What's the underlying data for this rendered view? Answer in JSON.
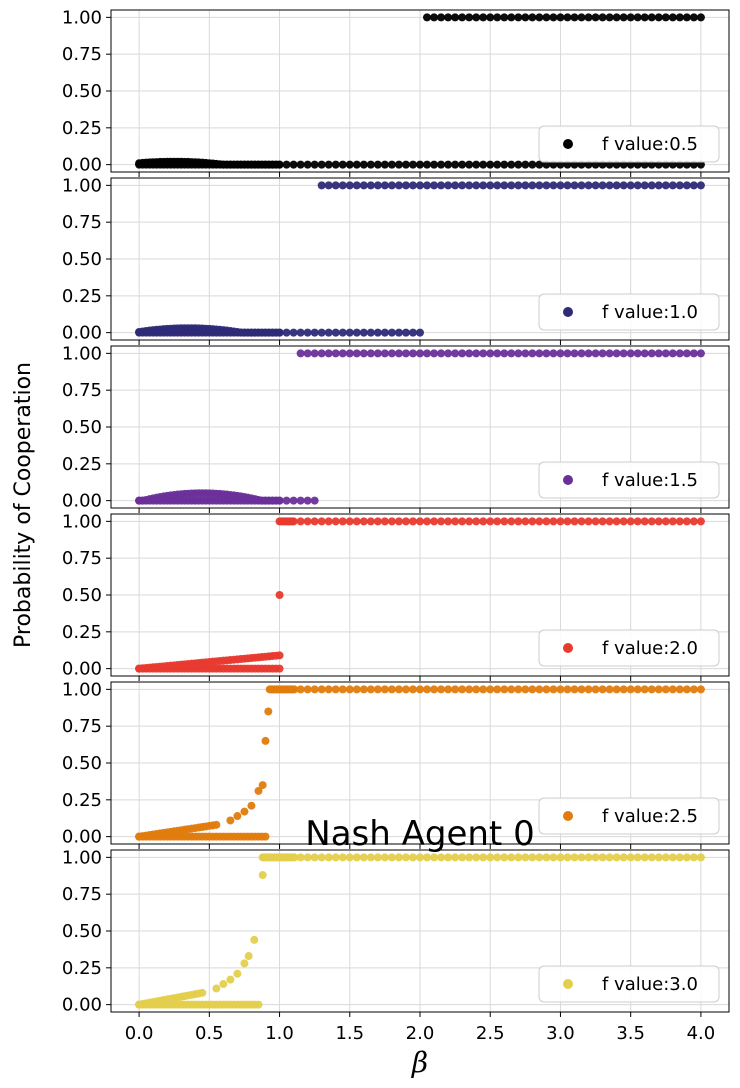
{
  "figure": {
    "title": "Nash Agent 0",
    "ylabel": "Probability of Cooperation",
    "xlabel": "β",
    "x_ticks": [
      "0.0",
      "0.5",
      "1.0",
      "1.5",
      "2.0",
      "2.5",
      "3.0",
      "3.5",
      "4.0"
    ],
    "y_ticks": [
      "0.00",
      "0.25",
      "0.50",
      "0.75",
      "1.00"
    ],
    "grid": true,
    "legend_position": "lower-right"
  },
  "chart_data": [
    {
      "type": "scatter",
      "name": "f value:0.5",
      "color": "#000000",
      "xlim": [
        -0.2,
        4.2
      ],
      "ylim": [
        -0.05,
        1.05
      ],
      "groups": [
        {
          "kind": "range",
          "x0": 0.0,
          "x1": 1.0,
          "step": 0.025,
          "y": 0.0
        },
        {
          "kind": "hump",
          "x0": 0.0,
          "x1": 1.0,
          "step": 0.025,
          "peak": 0.02,
          "center": 0.25,
          "width": 0.35
        },
        {
          "kind": "range",
          "x0": 1.05,
          "x1": 2.0,
          "step": 0.05,
          "y": 0.0
        },
        {
          "kind": "range",
          "x0": 2.05,
          "x1": 4.0,
          "step": 0.05,
          "y": 1.0
        },
        {
          "kind": "range",
          "x0": 2.05,
          "x1": 4.0,
          "step": 0.05,
          "y": 0.0
        }
      ]
    },
    {
      "type": "scatter",
      "name": "f value:1.0",
      "color": "#2e2a78",
      "xlim": [
        -0.2,
        4.2
      ],
      "ylim": [
        -0.05,
        1.05
      ],
      "groups": [
        {
          "kind": "range",
          "x0": 0.0,
          "x1": 1.0,
          "step": 0.025,
          "y": 0.0
        },
        {
          "kind": "hump",
          "x0": 0.0,
          "x1": 1.0,
          "step": 0.025,
          "peak": 0.03,
          "center": 0.35,
          "width": 0.38
        },
        {
          "kind": "range",
          "x0": 1.05,
          "x1": 2.0,
          "step": 0.05,
          "y": 0.0
        },
        {
          "kind": "range",
          "x0": 1.3,
          "x1": 4.0,
          "step": 0.05,
          "y": 1.0
        }
      ]
    },
    {
      "type": "scatter",
      "name": "f value:1.5",
      "color": "#6b2f9a",
      "xlim": [
        -0.2,
        4.2
      ],
      "ylim": [
        -0.05,
        1.05
      ],
      "groups": [
        {
          "kind": "range",
          "x0": 0.0,
          "x1": 1.0,
          "step": 0.025,
          "y": 0.0
        },
        {
          "kind": "hump",
          "x0": 0.0,
          "x1": 1.0,
          "step": 0.025,
          "peak": 0.05,
          "center": 0.45,
          "width": 0.42
        },
        {
          "kind": "range",
          "x0": 1.05,
          "x1": 1.25,
          "step": 0.05,
          "y": 0.0
        },
        {
          "kind": "range",
          "x0": 1.15,
          "x1": 4.0,
          "step": 0.05,
          "y": 1.0
        }
      ]
    },
    {
      "type": "scatter",
      "name": "f value:2.0",
      "color": "#e83a2f",
      "xlim": [
        -0.2,
        4.2
      ],
      "ylim": [
        -0.05,
        1.05
      ],
      "groups": [
        {
          "kind": "range",
          "x0": 0.0,
          "x1": 1.0,
          "step": 0.025,
          "y": 0.0
        },
        {
          "kind": "linear",
          "x0": 0.0,
          "x1": 1.0,
          "step": 0.025,
          "y0": 0.0,
          "y1": 0.09
        },
        {
          "kind": "points",
          "x": [
            1.0
          ],
          "y": [
            0.5
          ]
        },
        {
          "kind": "range",
          "x0": 1.0,
          "x1": 1.1,
          "step": 0.0125,
          "y": 1.0
        },
        {
          "kind": "range",
          "x0": 1.15,
          "x1": 4.0,
          "step": 0.05,
          "y": 1.0
        }
      ]
    },
    {
      "type": "scatter",
      "name": "f value:2.5",
      "color": "#e07c0e",
      "xlim": [
        -0.2,
        4.2
      ],
      "ylim": [
        -0.05,
        1.05
      ],
      "groups": [
        {
          "kind": "range",
          "x0": 0.0,
          "x1": 0.9,
          "step": 0.025,
          "y": 0.0
        },
        {
          "kind": "linear",
          "x0": 0.0,
          "x1": 0.55,
          "step": 0.025,
          "y0": 0.0,
          "y1": 0.08
        },
        {
          "kind": "points",
          "x": [
            0.65,
            0.7,
            0.75,
            0.8,
            0.85,
            0.88,
            0.9,
            0.92
          ],
          "y": [
            0.11,
            0.14,
            0.17,
            0.21,
            0.31,
            0.35,
            0.65,
            0.85
          ]
        },
        {
          "kind": "range",
          "x0": 0.93,
          "x1": 1.1,
          "step": 0.0125,
          "y": 1.0
        },
        {
          "kind": "range",
          "x0": 1.15,
          "x1": 4.0,
          "step": 0.05,
          "y": 1.0
        }
      ]
    },
    {
      "type": "scatter",
      "name": "f value:3.0",
      "color": "#e3cf4c",
      "xlim": [
        -0.2,
        4.2
      ],
      "ylim": [
        -0.05,
        1.05
      ],
      "groups": [
        {
          "kind": "range",
          "x0": 0.0,
          "x1": 0.85,
          "step": 0.025,
          "y": 0.0
        },
        {
          "kind": "linear",
          "x0": 0.0,
          "x1": 0.45,
          "step": 0.025,
          "y0": 0.0,
          "y1": 0.08
        },
        {
          "kind": "points",
          "x": [
            0.55,
            0.6,
            0.65,
            0.7,
            0.75,
            0.78,
            0.82,
            0.88
          ],
          "y": [
            0.11,
            0.14,
            0.17,
            0.21,
            0.28,
            0.33,
            0.44,
            0.88
          ]
        },
        {
          "kind": "range",
          "x0": 0.88,
          "x1": 1.1,
          "step": 0.0125,
          "y": 1.0
        },
        {
          "kind": "range",
          "x0": 1.15,
          "x1": 4.0,
          "step": 0.05,
          "y": 1.0
        }
      ]
    }
  ]
}
